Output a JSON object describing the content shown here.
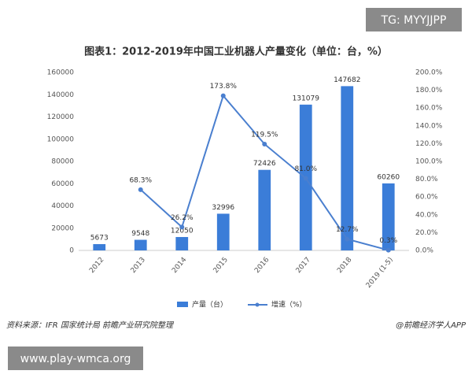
{
  "chart_data": {
    "type": "bar",
    "title": "图表1：2012-2019年中国工业机器人产量变化（单位：台，%）",
    "categories": [
      "2012",
      "2013",
      "2014",
      "2015",
      "2016",
      "2017",
      "2018",
      "2019 (1-5)"
    ],
    "series": [
      {
        "name": "产量（台）",
        "type": "bar",
        "color": "#3b7dd8",
        "values": [
          5673,
          9548,
          12050,
          32996,
          72426,
          131079,
          147682,
          60260
        ]
      },
      {
        "name": "增速（%）",
        "type": "line",
        "axis": "y2",
        "color": "#4a7fcf",
        "values": [
          null,
          68.3,
          26.2,
          173.8,
          119.5,
          81.0,
          12.7,
          0.3
        ],
        "value_labels": [
          null,
          "68.3%",
          "26.2%",
          "173.8%",
          "119.5%",
          "81.0%",
          "12.7%",
          "0.3%"
        ]
      }
    ],
    "ylim": [
      0,
      160000
    ],
    "yticks": [
      0,
      20000,
      40000,
      60000,
      80000,
      100000,
      120000,
      140000,
      160000
    ],
    "y2lim": [
      0,
      200
    ],
    "y2ticks": [
      {
        "value": 0,
        "label": "0.0%"
      },
      {
        "value": 20,
        "label": "20.0%"
      },
      {
        "value": 40,
        "label": "40.0%"
      },
      {
        "value": 60,
        "label": "60.0%"
      },
      {
        "value": 80,
        "label": "80.0%"
      },
      {
        "value": 100,
        "label": "100.0%"
      },
      {
        "value": 120,
        "label": "120.0%"
      },
      {
        "value": 140,
        "label": "140.0%"
      },
      {
        "value": 160,
        "label": "160.0%"
      },
      {
        "value": 180,
        "label": "180.0%"
      },
      {
        "value": 200,
        "label": "200.0%"
      }
    ],
    "grid": false,
    "source": "资料来源：IFR 国家统计局 前瞻产业研究院整理",
    "credit": "@前瞻经济学人APP"
  },
  "overlay": {
    "top_right": "TG: MYYJJPP",
    "bottom_left": "www.play-wmca.org"
  }
}
